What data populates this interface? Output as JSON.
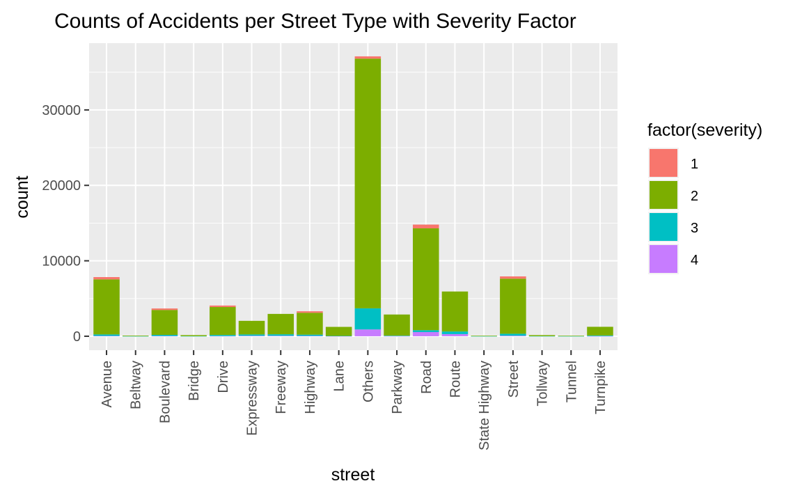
{
  "chart_data": {
    "type": "bar",
    "stacked": true,
    "title": "Counts of Accidents per Street Type with Severity Factor",
    "xlabel": "street",
    "ylabel": "count",
    "categories": [
      "Avenue",
      "Beltway",
      "Boulevard",
      "Bridge",
      "Drive",
      "Expressway",
      "Freeway",
      "Highway",
      "Lane",
      "Others",
      "Parkway",
      "Road",
      "Route",
      "State Highway",
      "Street",
      "Tollway",
      "Tunnel",
      "Turnpike"
    ],
    "series": [
      {
        "name": "4",
        "color": "#C77CFF",
        "values": [
          40,
          0,
          30,
          0,
          20,
          60,
          60,
          40,
          10,
          900,
          20,
          550,
          280,
          0,
          70,
          0,
          0,
          10
        ]
      },
      {
        "name": "3",
        "color": "#00BFC4",
        "values": [
          200,
          10,
          150,
          10,
          150,
          180,
          200,
          170,
          30,
          2800,
          60,
          250,
          350,
          10,
          260,
          10,
          10,
          90
        ]
      },
      {
        "name": "2",
        "color": "#7CAE00",
        "values": [
          7300,
          80,
          3300,
          140,
          3700,
          1800,
          2700,
          2900,
          1200,
          33100,
          2800,
          13500,
          5300,
          70,
          7300,
          140,
          70,
          1150
        ]
      },
      {
        "name": "1",
        "color": "#F8766D",
        "values": [
          300,
          0,
          200,
          0,
          200,
          0,
          0,
          200,
          0,
          300,
          0,
          500,
          0,
          0,
          300,
          0,
          0,
          0
        ]
      }
    ],
    "ylim": [
      -1850,
      38850
    ],
    "yticks": [
      0,
      10000,
      20000,
      30000
    ],
    "grid": true,
    "legend": {
      "title": "factor(severity)",
      "position": "right",
      "entries": [
        "1",
        "2",
        "3",
        "4"
      ]
    }
  }
}
